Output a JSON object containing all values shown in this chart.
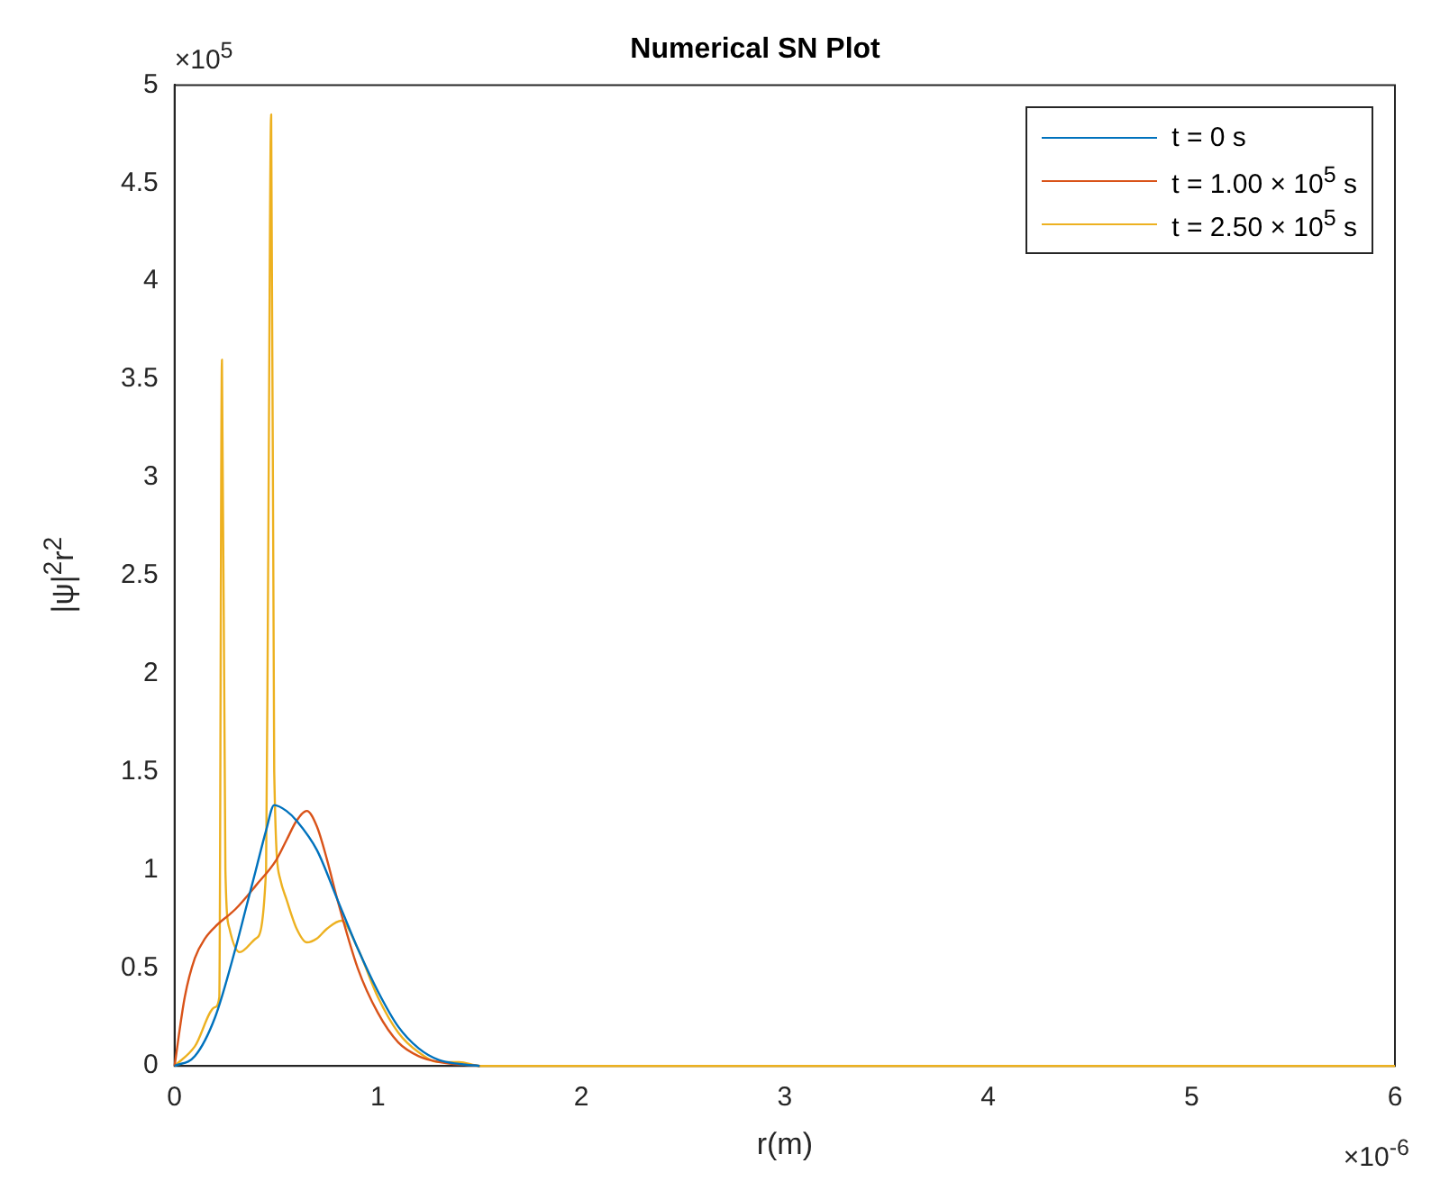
{
  "chart_data": {
    "type": "line",
    "title": "Numerical SN Plot",
    "xlabel": "r(m)",
    "ylabel": "|ψ|$^{2}$r$^{2}$",
    "annotations": [
      "×10$^{5}$",
      "×10$^{-6}$"
    ],
    "xlim": [
      0,
      6
    ],
    "xticks": [
      0,
      1,
      2,
      3,
      4,
      5,
      6
    ],
    "ylim": [
      0,
      5
    ],
    "yticks": [
      0,
      0.5,
      1,
      1.5,
      2,
      2.5,
      3,
      3.5,
      4,
      4.5,
      5
    ],
    "grid": false,
    "legend": "top right",
    "series": [
      {
        "name": "t = 0 s",
        "color": "#0072bd",
        "x": [
          0,
          0.1,
          0.2,
          0.3,
          0.35,
          0.4,
          0.45,
          0.49,
          0.55,
          0.6,
          0.7,
          0.8,
          0.9,
          1.0,
          1.1,
          1.2,
          1.3,
          1.4,
          1.5
        ],
        "values": [
          0,
          0.05,
          0.25,
          0.6,
          0.8,
          1.0,
          1.2,
          1.33,
          1.3,
          1.25,
          1.1,
          0.85,
          0.6,
          0.38,
          0.2,
          0.09,
          0.03,
          0.01,
          0
        ]
      },
      {
        "name": "t = 1.00 × 10$^{5}$ s",
        "color": "#d95319",
        "x": [
          0,
          0.05,
          0.1,
          0.15,
          0.2,
          0.3,
          0.4,
          0.5,
          0.55,
          0.6,
          0.65,
          0.7,
          0.75,
          0.8,
          0.9,
          1.0,
          1.1,
          1.2,
          1.3,
          1.5
        ],
        "values": [
          0,
          0.35,
          0.55,
          0.65,
          0.71,
          0.8,
          0.92,
          1.05,
          1.15,
          1.25,
          1.3,
          1.22,
          1.05,
          0.85,
          0.5,
          0.27,
          0.12,
          0.05,
          0.02,
          0
        ]
      },
      {
        "name": "t = 2.50 × 10$^{5}$ s",
        "color": "#edb120",
        "x": [
          0,
          0.1,
          0.2,
          0.22,
          0.233,
          0.25,
          0.27,
          0.32,
          0.4,
          0.45,
          0.46,
          0.475,
          0.49,
          0.52,
          0.55,
          0.6,
          0.65,
          0.7,
          0.75,
          0.82,
          0.9,
          1.0,
          1.1,
          1.2,
          1.3,
          1.4,
          1.5,
          6
        ],
        "values": [
          0,
          0.1,
          0.3,
          0.35,
          3.6,
          1.0,
          0.7,
          0.58,
          0.65,
          1.0,
          2.5,
          4.85,
          1.5,
          0.95,
          0.85,
          0.7,
          0.63,
          0.65,
          0.7,
          0.74,
          0.6,
          0.35,
          0.17,
          0.07,
          0.02,
          0.02,
          0,
          0
        ]
      }
    ]
  }
}
